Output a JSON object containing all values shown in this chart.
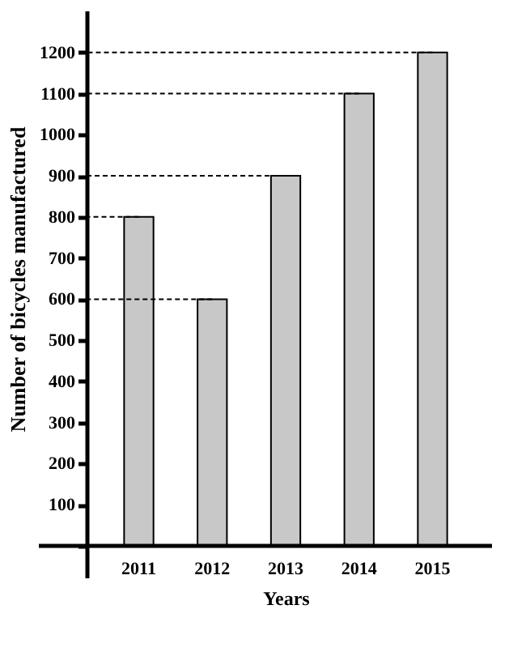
{
  "chart_data": {
    "type": "bar",
    "xlabel": "Years",
    "ylabel": "Number of bicycles manufactured",
    "categories": [
      "2011",
      "2012",
      "2013",
      "2014",
      "2015"
    ],
    "values": [
      800,
      600,
      900,
      1100,
      1200
    ],
    "color": "#c8c8c8",
    "ylim": [
      0,
      1300
    ],
    "yticks": [
      {
        "value": 0,
        "label": null
      },
      100,
      200,
      300,
      400,
      500,
      600,
      700,
      800,
      900,
      1000,
      1100,
      1200
    ],
    "grid": false,
    "ref_lines": [
      {
        "axis": "y",
        "value": 1200,
        "line_style": "dashed"
      },
      {
        "axis": "y",
        "value": 1100,
        "line_style": "dashed"
      },
      {
        "axis": "y",
        "value": 900,
        "line_style": "dashed"
      },
      {
        "axis": "y",
        "value": 800,
        "line_style": "dashed"
      },
      {
        "axis": "y",
        "value": 600,
        "line_style": "dashed"
      }
    ]
  }
}
